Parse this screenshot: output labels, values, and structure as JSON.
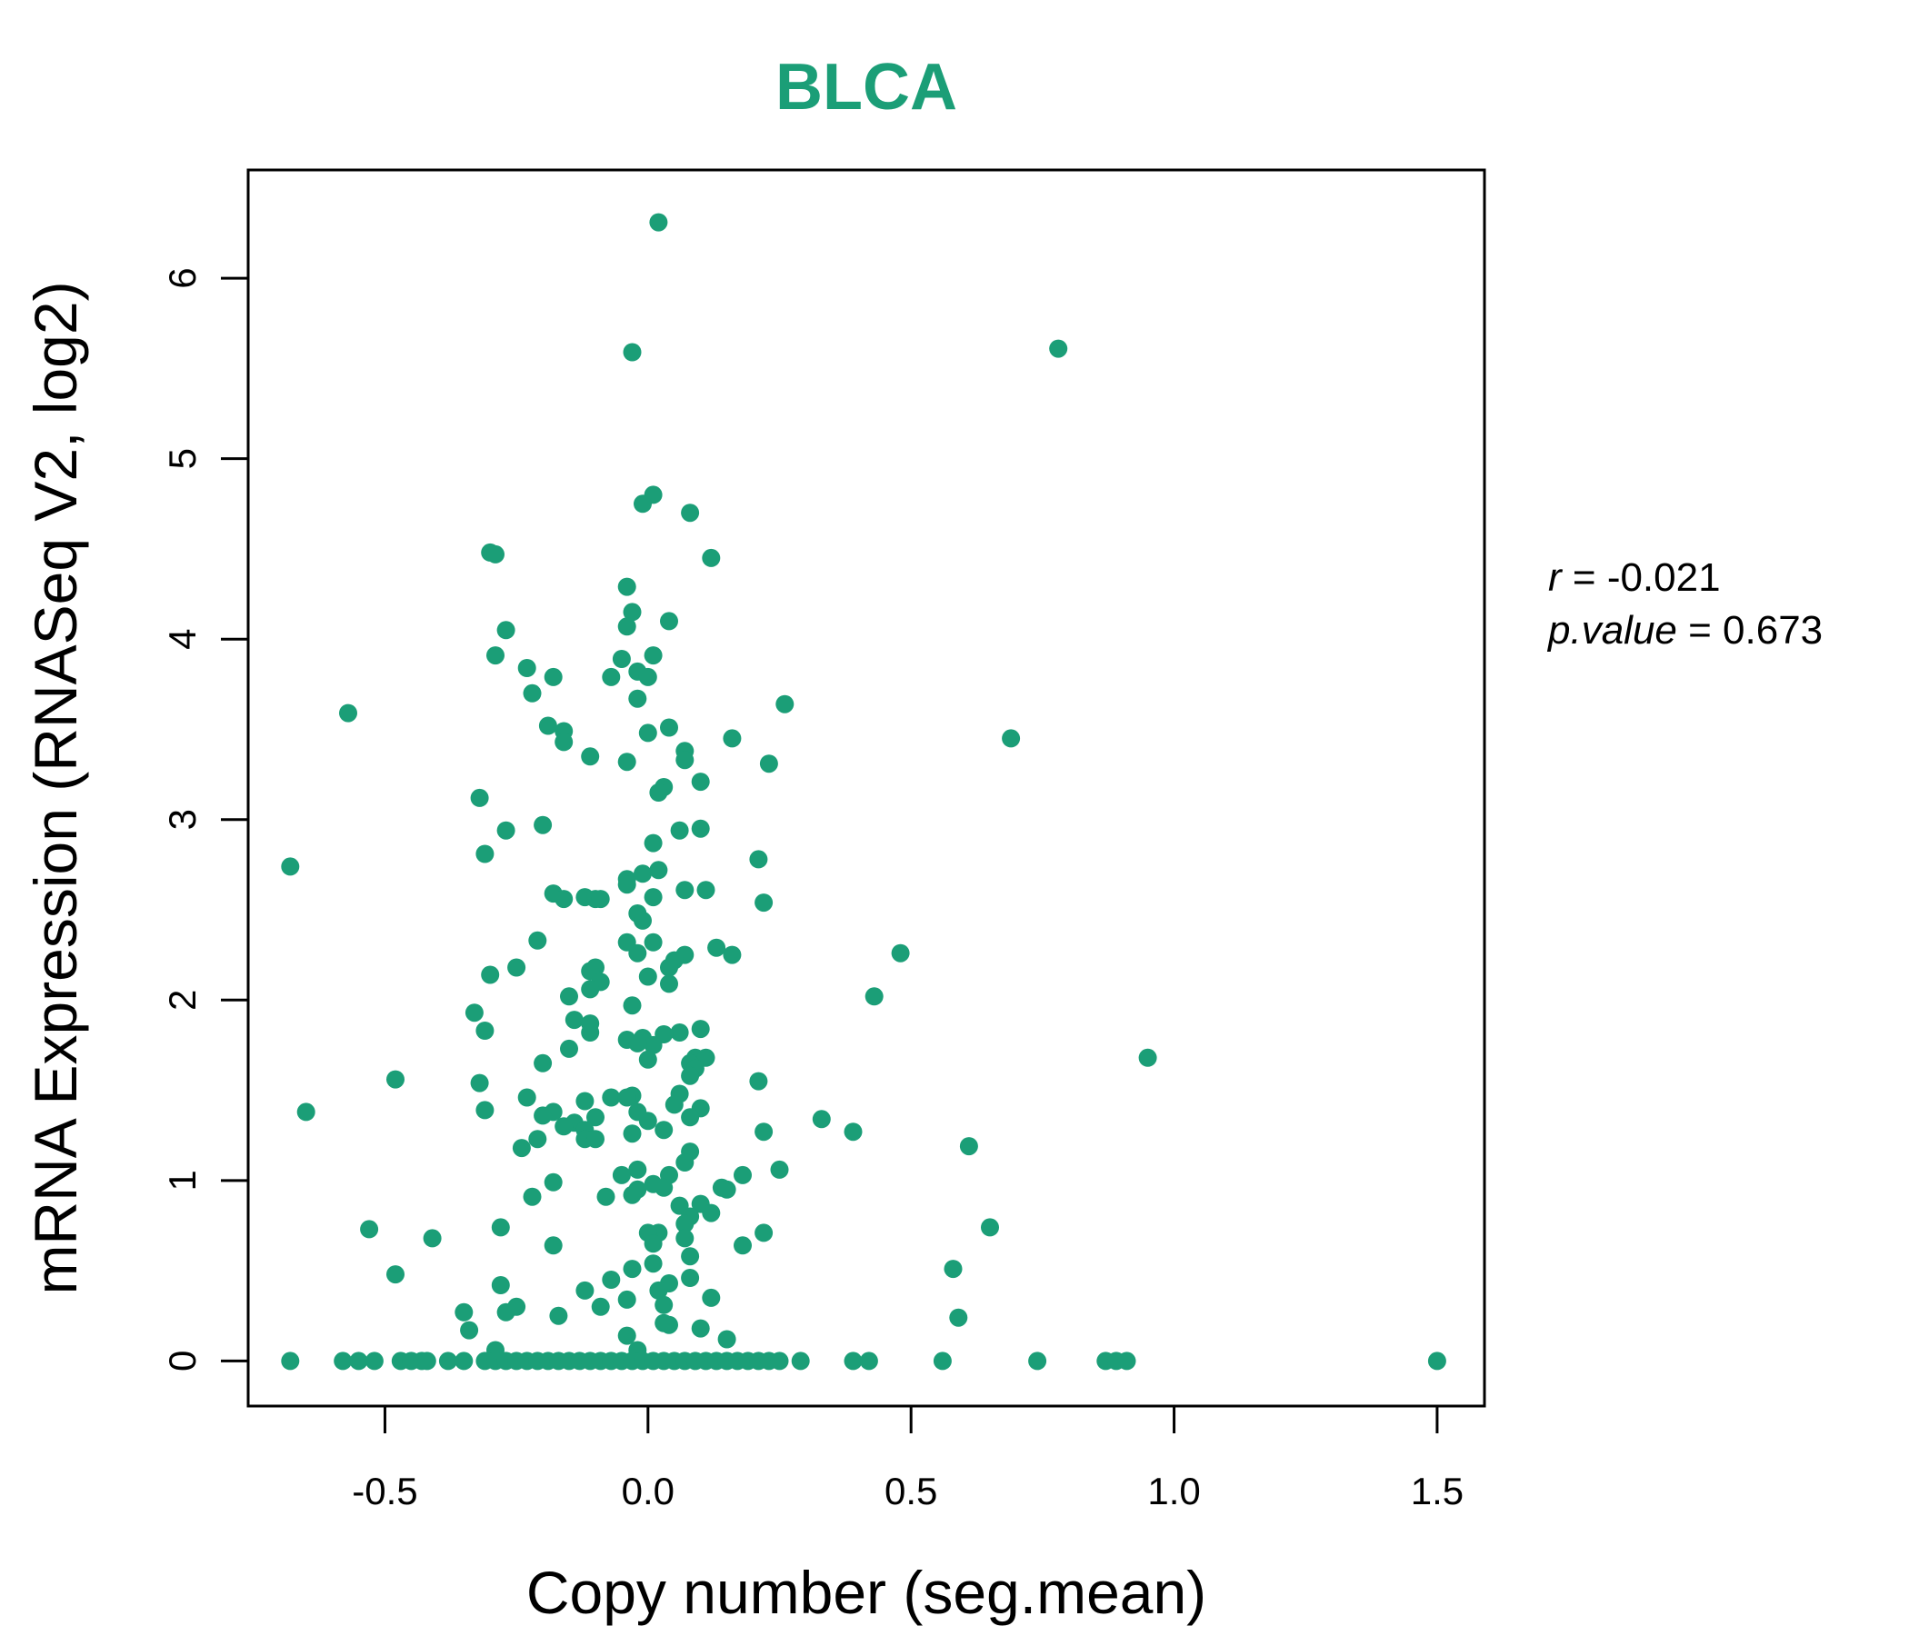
{
  "chart_data": {
    "type": "scatter",
    "title": "BLCA",
    "xlabel": "Copy number (seg.mean)",
    "ylabel": "mRNA Expression (RNASeq V2, log2)",
    "xlim": [
      -0.76,
      1.59
    ],
    "ylim": [
      -0.25,
      6.6
    ],
    "x_ticks": [
      -0.5,
      0.0,
      0.5,
      1.0,
      1.5
    ],
    "x_tick_labels": [
      "-0.5",
      "0.0",
      "0.5",
      "1.0",
      "1.5"
    ],
    "y_ticks": [
      0,
      1,
      2,
      3,
      4,
      5,
      6
    ],
    "y_tick_labels": [
      "0",
      "1",
      "2",
      "3",
      "4",
      "5",
      "6"
    ],
    "grid": false,
    "color": "#1b9e77",
    "annotation": {
      "r_label": "r",
      "r_value": "-0.021",
      "p_label": "p.value",
      "p_value": "0.673"
    },
    "points": [
      [
        0.02,
        6.31
      ],
      [
        -0.03,
        5.59
      ],
      [
        0.78,
        5.61
      ],
      [
        0.01,
        4.8
      ],
      [
        -0.01,
        4.75
      ],
      [
        0.08,
        4.7
      ],
      [
        -0.3,
        4.48
      ],
      [
        -0.29,
        4.47
      ],
      [
        0.12,
        4.45
      ],
      [
        -0.04,
        4.29
      ],
      [
        -0.03,
        4.15
      ],
      [
        -0.04,
        4.07
      ],
      [
        -0.27,
        4.05
      ],
      [
        0.04,
        4.1
      ],
      [
        -0.29,
        3.91
      ],
      [
        0.01,
        3.91
      ],
      [
        -0.05,
        3.89
      ],
      [
        -0.23,
        3.84
      ],
      [
        -0.18,
        3.79
      ],
      [
        -0.07,
        3.79
      ],
      [
        -0.02,
        3.82
      ],
      [
        0.0,
        3.79
      ],
      [
        -0.22,
        3.7
      ],
      [
        -0.02,
        3.67
      ],
      [
        -0.57,
        3.59
      ],
      [
        0.26,
        3.64
      ],
      [
        -0.19,
        3.52
      ],
      [
        -0.16,
        3.49
      ],
      [
        -0.16,
        3.43
      ],
      [
        0.0,
        3.48
      ],
      [
        0.04,
        3.51
      ],
      [
        0.16,
        3.45
      ],
      [
        0.69,
        3.45
      ],
      [
        0.07,
        3.38
      ],
      [
        0.07,
        3.33
      ],
      [
        -0.11,
        3.35
      ],
      [
        -0.04,
        3.32
      ],
      [
        0.23,
        3.31
      ],
      [
        0.1,
        3.21
      ],
      [
        0.03,
        3.18
      ],
      [
        0.02,
        3.15
      ],
      [
        -0.32,
        3.12
      ],
      [
        -0.2,
        2.97
      ],
      [
        -0.27,
        2.94
      ],
      [
        0.06,
        2.94
      ],
      [
        0.1,
        2.95
      ],
      [
        0.01,
        2.87
      ],
      [
        -0.31,
        2.81
      ],
      [
        0.21,
        2.78
      ],
      [
        -0.68,
        2.74
      ],
      [
        0.02,
        2.72
      ],
      [
        -0.01,
        2.7
      ],
      [
        -0.04,
        2.67
      ],
      [
        -0.04,
        2.64
      ],
      [
        0.07,
        2.61
      ],
      [
        0.11,
        2.61
      ],
      [
        -0.18,
        2.59
      ],
      [
        -0.16,
        2.56
      ],
      [
        -0.12,
        2.57
      ],
      [
        -0.1,
        2.56
      ],
      [
        -0.09,
        2.56
      ],
      [
        0.01,
        2.57
      ],
      [
        0.22,
        2.54
      ],
      [
        -0.02,
        2.48
      ],
      [
        -0.01,
        2.44
      ],
      [
        -0.21,
        2.33
      ],
      [
        -0.04,
        2.32
      ],
      [
        0.01,
        2.32
      ],
      [
        0.13,
        2.29
      ],
      [
        0.16,
        2.25
      ],
      [
        0.07,
        2.25
      ],
      [
        0.05,
        2.22
      ],
      [
        -0.02,
        2.26
      ],
      [
        0.48,
        2.26
      ],
      [
        0.04,
        2.18
      ],
      [
        -0.1,
        2.18
      ],
      [
        -0.25,
        2.18
      ],
      [
        -0.11,
        2.16
      ],
      [
        -0.3,
        2.14
      ],
      [
        0.0,
        2.13
      ],
      [
        -0.09,
        2.1
      ],
      [
        0.04,
        2.09
      ],
      [
        -0.11,
        2.06
      ],
      [
        -0.15,
        2.02
      ],
      [
        0.43,
        2.02
      ],
      [
        -0.03,
        1.97
      ],
      [
        -0.33,
        1.93
      ],
      [
        -0.14,
        1.89
      ],
      [
        -0.11,
        1.87
      ],
      [
        -0.31,
        1.83
      ],
      [
        -0.11,
        1.82
      ],
      [
        0.1,
        1.84
      ],
      [
        0.06,
        1.82
      ],
      [
        -0.04,
        1.78
      ],
      [
        -0.01,
        1.79
      ],
      [
        0.03,
        1.81
      ],
      [
        0.01,
        1.75
      ],
      [
        -0.02,
        1.76
      ],
      [
        -0.15,
        1.73
      ],
      [
        0.0,
        1.67
      ],
      [
        0.09,
        1.68
      ],
      [
        0.11,
        1.68
      ],
      [
        0.95,
        1.68
      ],
      [
        0.08,
        1.65
      ],
      [
        0.09,
        1.62
      ],
      [
        -0.2,
        1.65
      ],
      [
        0.08,
        1.58
      ],
      [
        -0.48,
        1.56
      ],
      [
        -0.32,
        1.54
      ],
      [
        0.21,
        1.55
      ],
      [
        0.06,
        1.48
      ],
      [
        -0.03,
        1.47
      ],
      [
        -0.07,
        1.46
      ],
      [
        -0.23,
        1.46
      ],
      [
        -0.04,
        1.46
      ],
      [
        0.05,
        1.42
      ],
      [
        -0.12,
        1.44
      ],
      [
        0.1,
        1.4
      ],
      [
        -0.02,
        1.38
      ],
      [
        -0.18,
        1.38
      ],
      [
        -0.65,
        1.38
      ],
      [
        -0.31,
        1.39
      ],
      [
        0.33,
        1.34
      ],
      [
        -0.2,
        1.36
      ],
      [
        -0.1,
        1.35
      ],
      [
        0.08,
        1.35
      ],
      [
        -0.14,
        1.32
      ],
      [
        0.0,
        1.33
      ],
      [
        -0.16,
        1.3
      ],
      [
        0.03,
        1.28
      ],
      [
        -0.12,
        1.28
      ],
      [
        -0.03,
        1.26
      ],
      [
        0.22,
        1.27
      ],
      [
        0.39,
        1.27
      ],
      [
        -0.12,
        1.23
      ],
      [
        -0.1,
        1.23
      ],
      [
        -0.21,
        1.23
      ],
      [
        -0.24,
        1.18
      ],
      [
        0.61,
        1.19
      ],
      [
        0.08,
        1.16
      ],
      [
        0.07,
        1.1
      ],
      [
        0.25,
        1.06
      ],
      [
        -0.02,
        1.06
      ],
      [
        0.04,
        1.03
      ],
      [
        -0.05,
        1.03
      ],
      [
        0.18,
        1.03
      ],
      [
        0.01,
        0.98
      ],
      [
        -0.18,
        0.99
      ],
      [
        0.14,
        0.96
      ],
      [
        0.15,
        0.95
      ],
      [
        0.1,
        0.87
      ],
      [
        0.06,
        0.86
      ],
      [
        -0.02,
        0.95
      ],
      [
        0.03,
        0.96
      ],
      [
        -0.03,
        0.92
      ],
      [
        -0.08,
        0.91
      ],
      [
        -0.22,
        0.91
      ],
      [
        0.12,
        0.82
      ],
      [
        0.08,
        0.8
      ],
      [
        0.07,
        0.76
      ],
      [
        -0.53,
        0.73
      ],
      [
        -0.28,
        0.74
      ],
      [
        0.02,
        0.71
      ],
      [
        0.0,
        0.71
      ],
      [
        0.22,
        0.71
      ],
      [
        0.65,
        0.74
      ],
      [
        -0.41,
        0.68
      ],
      [
        0.07,
        0.68
      ],
      [
        0.01,
        0.65
      ],
      [
        -0.18,
        0.64
      ],
      [
        0.18,
        0.64
      ],
      [
        0.08,
        0.58
      ],
      [
        0.01,
        0.54
      ],
      [
        -0.03,
        0.51
      ],
      [
        0.58,
        0.51
      ],
      [
        -0.48,
        0.48
      ],
      [
        -0.07,
        0.45
      ],
      [
        0.08,
        0.46
      ],
      [
        0.04,
        0.43
      ],
      [
        -0.12,
        0.39
      ],
      [
        -0.28,
        0.42
      ],
      [
        0.02,
        0.39
      ],
      [
        0.12,
        0.35
      ],
      [
        -0.04,
        0.34
      ],
      [
        0.03,
        0.31
      ],
      [
        -0.09,
        0.3
      ],
      [
        -0.25,
        0.3
      ],
      [
        -0.35,
        0.27
      ],
      [
        -0.27,
        0.27
      ],
      [
        -0.17,
        0.25
      ],
      [
        0.59,
        0.24
      ],
      [
        0.04,
        0.2
      ],
      [
        0.03,
        0.21
      ],
      [
        -0.34,
        0.17
      ],
      [
        0.1,
        0.18
      ],
      [
        0.15,
        0.12
      ],
      [
        -0.04,
        0.14
      ],
      [
        -0.29,
        0.06
      ],
      [
        -0.02,
        0.06
      ],
      [
        -0.68,
        0.0
      ],
      [
        -0.58,
        0.0
      ],
      [
        -0.55,
        0.0
      ],
      [
        -0.52,
        0.0
      ],
      [
        -0.47,
        0.0
      ],
      [
        -0.45,
        0.0
      ],
      [
        -0.43,
        0.0
      ],
      [
        -0.42,
        0.0
      ],
      [
        -0.38,
        0.0
      ],
      [
        -0.35,
        0.0
      ],
      [
        -0.31,
        0.0
      ],
      [
        -0.29,
        0.0
      ],
      [
        -0.27,
        0.0
      ],
      [
        -0.25,
        0.0
      ],
      [
        -0.23,
        0.0
      ],
      [
        -0.21,
        0.0
      ],
      [
        -0.19,
        0.0
      ],
      [
        -0.17,
        0.0
      ],
      [
        -0.15,
        0.0
      ],
      [
        -0.13,
        0.0
      ],
      [
        -0.11,
        0.0
      ],
      [
        -0.09,
        0.0
      ],
      [
        -0.07,
        0.0
      ],
      [
        -0.05,
        0.0
      ],
      [
        -0.03,
        0.0
      ],
      [
        -0.01,
        0.0
      ],
      [
        0.01,
        0.0
      ],
      [
        0.03,
        0.0
      ],
      [
        0.05,
        0.0
      ],
      [
        0.07,
        0.0
      ],
      [
        0.09,
        0.0
      ],
      [
        0.11,
        0.0
      ],
      [
        0.13,
        0.0
      ],
      [
        0.15,
        0.0
      ],
      [
        0.17,
        0.0
      ],
      [
        0.19,
        0.0
      ],
      [
        0.21,
        0.0
      ],
      [
        0.23,
        0.0
      ],
      [
        0.25,
        0.0
      ],
      [
        0.29,
        0.0
      ],
      [
        0.39,
        0.0
      ],
      [
        0.42,
        0.0
      ],
      [
        0.56,
        0.0
      ],
      [
        0.74,
        0.0
      ],
      [
        0.87,
        0.0
      ],
      [
        0.89,
        0.0
      ],
      [
        0.91,
        0.0
      ],
      [
        1.5,
        0.0
      ]
    ]
  }
}
